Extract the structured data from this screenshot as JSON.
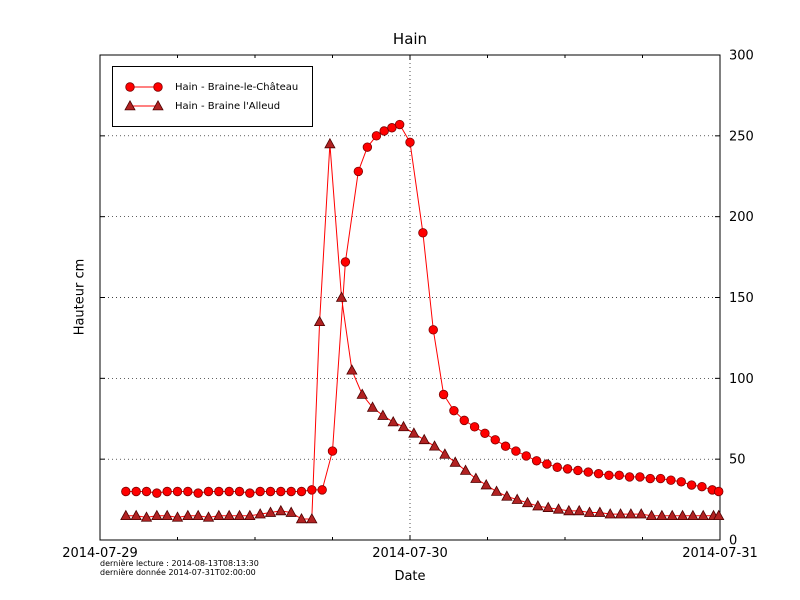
{
  "footer": {
    "line1": "dernière lecture : 2014-08-13T08:13:30",
    "line2": "dernière donnée  2014-07-31T02:00:00"
  },
  "chart_data": {
    "type": "line",
    "title": "Hain",
    "xlabel": "Date",
    "ylabel": "Hauteur cm",
    "x_unit": "hours since 2014-07-29 00:00",
    "xlim": [
      0,
      48
    ],
    "ylim": [
      0,
      300
    ],
    "grid": "dotted",
    "legend_position": "upper-left",
    "yticks": [
      0,
      50,
      100,
      150,
      200,
      250,
      300
    ],
    "xticks": [
      {
        "t": 0,
        "label": "2014-07-29"
      },
      {
        "t": 24,
        "label": "2014-07-30"
      },
      {
        "t": 48,
        "label": "2014-07-31"
      }
    ],
    "series": [
      {
        "name": "Hain - Braine-le-Château",
        "marker": "circle",
        "line_color": "#ff0000",
        "marker_fill": "#ff0000",
        "marker_edge": "#7f0000",
        "points": [
          [
            2,
            30
          ],
          [
            2.8,
            30
          ],
          [
            3.6,
            30
          ],
          [
            4.4,
            29
          ],
          [
            5.2,
            30
          ],
          [
            6,
            30
          ],
          [
            6.8,
            30
          ],
          [
            7.6,
            29
          ],
          [
            8.4,
            30
          ],
          [
            9.2,
            30
          ],
          [
            10,
            30
          ],
          [
            10.8,
            30
          ],
          [
            11.6,
            29
          ],
          [
            12.4,
            30
          ],
          [
            13.2,
            30
          ],
          [
            14,
            30
          ],
          [
            14.8,
            30
          ],
          [
            15.6,
            30
          ],
          [
            16.4,
            31
          ],
          [
            17.2,
            31
          ],
          [
            18,
            55
          ],
          [
            19,
            172
          ],
          [
            20,
            228
          ],
          [
            20.7,
            243
          ],
          [
            21.4,
            250
          ],
          [
            22,
            253
          ],
          [
            22.6,
            255
          ],
          [
            23.2,
            257
          ],
          [
            24,
            246
          ],
          [
            25,
            190
          ],
          [
            25.8,
            130
          ],
          [
            26.6,
            90
          ],
          [
            27.4,
            80
          ],
          [
            28.2,
            74
          ],
          [
            29,
            70
          ],
          [
            29.8,
            66
          ],
          [
            30.6,
            62
          ],
          [
            31.4,
            58
          ],
          [
            32.2,
            55
          ],
          [
            33,
            52
          ],
          [
            33.8,
            49
          ],
          [
            34.6,
            47
          ],
          [
            35.4,
            45
          ],
          [
            36.2,
            44
          ],
          [
            37,
            43
          ],
          [
            37.8,
            42
          ],
          [
            38.6,
            41
          ],
          [
            39.4,
            40
          ],
          [
            40.2,
            40
          ],
          [
            41,
            39
          ],
          [
            41.8,
            39
          ],
          [
            42.6,
            38
          ],
          [
            43.4,
            38
          ],
          [
            44.2,
            37
          ],
          [
            45,
            36
          ],
          [
            45.8,
            34
          ],
          [
            46.6,
            33
          ],
          [
            47.4,
            31
          ],
          [
            47.9,
            30
          ]
        ]
      },
      {
        "name": "Hain - Braine l'Alleud",
        "marker": "triangle",
        "line_color": "#ff0000",
        "marker_fill": "#b22222",
        "marker_edge": "#4d0000",
        "points": [
          [
            2,
            15
          ],
          [
            2.8,
            15
          ],
          [
            3.6,
            14
          ],
          [
            4.4,
            15
          ],
          [
            5.2,
            15
          ],
          [
            6,
            14
          ],
          [
            6.8,
            15
          ],
          [
            7.6,
            15
          ],
          [
            8.4,
            14
          ],
          [
            9.2,
            15
          ],
          [
            10,
            15
          ],
          [
            10.8,
            15
          ],
          [
            11.6,
            15
          ],
          [
            12.4,
            16
          ],
          [
            13.2,
            17
          ],
          [
            14,
            18
          ],
          [
            14.8,
            17
          ],
          [
            15.6,
            13
          ],
          [
            16.4,
            13
          ],
          [
            17,
            135
          ],
          [
            17.8,
            245
          ],
          [
            18.7,
            150
          ],
          [
            19.5,
            105
          ],
          [
            20.3,
            90
          ],
          [
            21.1,
            82
          ],
          [
            21.9,
            77
          ],
          [
            22.7,
            73
          ],
          [
            23.5,
            70
          ],
          [
            24.3,
            66
          ],
          [
            25.1,
            62
          ],
          [
            25.9,
            58
          ],
          [
            26.7,
            53
          ],
          [
            27.5,
            48
          ],
          [
            28.3,
            43
          ],
          [
            29.1,
            38
          ],
          [
            29.9,
            34
          ],
          [
            30.7,
            30
          ],
          [
            31.5,
            27
          ],
          [
            32.3,
            25
          ],
          [
            33.1,
            23
          ],
          [
            33.9,
            21
          ],
          [
            34.7,
            20
          ],
          [
            35.5,
            19
          ],
          [
            36.3,
            18
          ],
          [
            37.1,
            18
          ],
          [
            37.9,
            17
          ],
          [
            38.7,
            17
          ],
          [
            39.5,
            16
          ],
          [
            40.3,
            16
          ],
          [
            41.1,
            16
          ],
          [
            41.9,
            16
          ],
          [
            42.7,
            15
          ],
          [
            43.5,
            15
          ],
          [
            44.3,
            15
          ],
          [
            45.1,
            15
          ],
          [
            45.9,
            15
          ],
          [
            46.7,
            15
          ],
          [
            47.5,
            15
          ],
          [
            47.9,
            15
          ]
        ]
      }
    ]
  }
}
